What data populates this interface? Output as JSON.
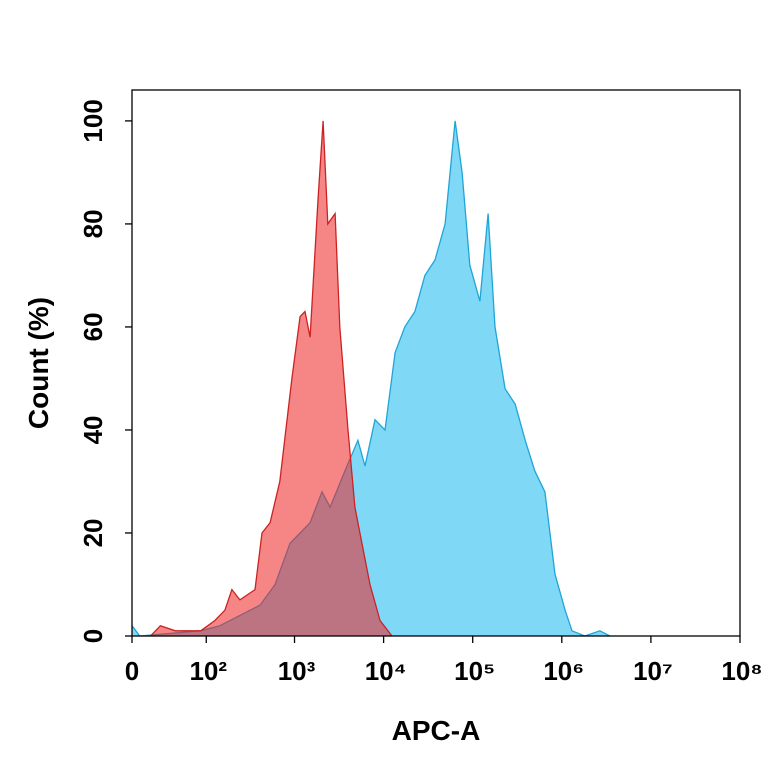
{
  "chart_data": {
    "type": "area",
    "x_label": "APC-A",
    "y_label": "Count  (%)",
    "xscale": "asinh",
    "xlim": [
      0,
      100000000
    ],
    "ylim": [
      0,
      106
    ],
    "xticks": [
      0,
      {
        "value": 100,
        "label": "10²"
      },
      {
        "value": 1000,
        "label": "10³"
      },
      {
        "value": 10000,
        "label": "10⁴"
      },
      {
        "value": 100000,
        "label": "10⁵"
      },
      {
        "value": 1000000,
        "label": "10⁶"
      },
      {
        "value": 10000000,
        "label": "10⁷"
      },
      {
        "value": 100000000,
        "label": "10⁸"
      }
    ],
    "yticks": [
      0,
      20,
      40,
      60,
      80,
      100
    ],
    "series": [
      {
        "color": "#1fa5d6",
        "fill": "#80d8f7",
        "x": [
          0,
          6,
          86,
          144,
          243,
          410,
          606,
          890,
          1154,
          1495,
          2035,
          2507,
          3670,
          5150,
          6178,
          8010,
          10380,
          13470,
          17300,
          22440,
          29100,
          37760,
          48970,
          63500,
          76000,
          92800,
          120400,
          148700,
          178000,
          230900,
          299500,
          388400,
          498600,
          646700,
          838800,
          1088000,
          1300000,
          1810000,
          2680000,
          3470000
        ],
        "values": [
          2,
          0,
          1,
          2,
          4,
          6,
          10,
          18,
          20,
          22,
          28,
          25,
          32,
          38,
          33,
          42,
          40,
          55,
          60,
          63,
          70,
          73,
          80,
          100,
          90,
          72,
          65,
          82,
          60,
          48,
          45,
          38,
          32,
          28,
          12,
          5,
          1,
          0,
          1,
          0
        ]
      },
      {
        "color": "#cc2222",
        "fill": "#ee2222",
        "x": [
          15,
          24,
          41,
          86,
          126,
          164,
          197,
          243,
          360,
          431,
          532,
          684,
          934,
          1154,
          1313,
          1495,
          1842,
          2096,
          2365,
          2855,
          3226,
          3982,
          4765,
          5700,
          7033,
          9120,
          12430
        ],
        "values": [
          0,
          2,
          1,
          1,
          3,
          5,
          9,
          7,
          9,
          20,
          22,
          30,
          50,
          62,
          63,
          58,
          85,
          100,
          80,
          82,
          60,
          40,
          25,
          18,
          10,
          3,
          0
        ]
      }
    ]
  }
}
